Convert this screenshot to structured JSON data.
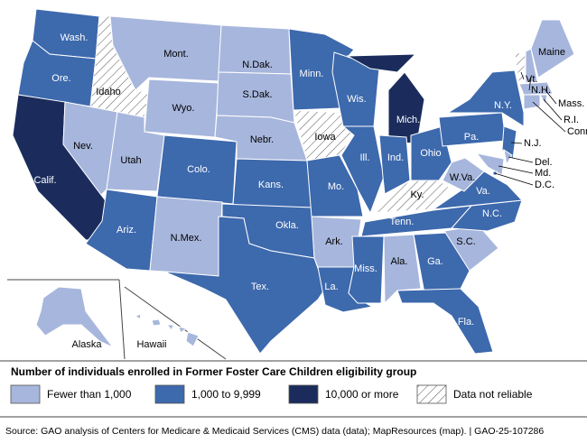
{
  "legend": {
    "title": "Number of individuals enrolled in Former Foster Care Children eligibility group",
    "items": [
      {
        "label": "Fewer than 1,000",
        "color": "#a7b6dc"
      },
      {
        "label": "1,000 to 9,999",
        "color": "#3d69ad"
      },
      {
        "label": "10,000 or more",
        "color": "#1b2c5c"
      },
      {
        "label": "Data not reliable",
        "color": "#ffffff",
        "hatched": true
      }
    ]
  },
  "states": [
    {
      "label": "Wash.",
      "category": "1,000 to 9,999"
    },
    {
      "label": "Ore.",
      "category": "1,000 to 9,999"
    },
    {
      "label": "Calif.",
      "category": "10,000 or more"
    },
    {
      "label": "Idaho",
      "category": "Data not reliable"
    },
    {
      "label": "Nev.",
      "category": "Fewer than 1,000"
    },
    {
      "label": "Mont.",
      "category": "Fewer than 1,000"
    },
    {
      "label": "Wyo.",
      "category": "Fewer than 1,000"
    },
    {
      "label": "Utah",
      "category": "Fewer than 1,000"
    },
    {
      "label": "Colo.",
      "category": "1,000 to 9,999"
    },
    {
      "label": "Ariz.",
      "category": "1,000 to 9,999"
    },
    {
      "label": "N.Mex.",
      "category": "Fewer than 1,000"
    },
    {
      "label": "N.Dak.",
      "category": "Fewer than 1,000"
    },
    {
      "label": "S.Dak.",
      "category": "Fewer than 1,000"
    },
    {
      "label": "Nebr.",
      "category": "Fewer than 1,000"
    },
    {
      "label": "Kans.",
      "category": "1,000 to 9,999"
    },
    {
      "label": "Okla.",
      "category": "1,000 to 9,999"
    },
    {
      "label": "Tex.",
      "category": "1,000 to 9,999"
    },
    {
      "label": "Minn.",
      "category": "1,000 to 9,999"
    },
    {
      "label": "Iowa",
      "category": "Data not reliable"
    },
    {
      "label": "Mo.",
      "category": "1,000 to 9,999"
    },
    {
      "label": "Ark.",
      "category": "Fewer than 1,000"
    },
    {
      "label": "La.",
      "category": "1,000 to 9,999"
    },
    {
      "label": "Wis.",
      "category": "1,000 to 9,999"
    },
    {
      "label": "Ill.",
      "category": "1,000 to 9,999"
    },
    {
      "label": "Mich.",
      "category": "10,000 or more"
    },
    {
      "label": "Ind.",
      "category": "1,000 to 9,999"
    },
    {
      "label": "Ohio",
      "category": "1,000 to 9,999"
    },
    {
      "label": "Ky.",
      "category": "Data not reliable"
    },
    {
      "label": "Tenn.",
      "category": "1,000 to 9,999"
    },
    {
      "label": "Miss.",
      "category": "1,000 to 9,999"
    },
    {
      "label": "Ala.",
      "category": "Fewer than 1,000"
    },
    {
      "label": "Ga.",
      "category": "1,000 to 9,999"
    },
    {
      "label": "Fla.",
      "category": "1,000 to 9,999"
    },
    {
      "label": "S.C.",
      "category": "Fewer than 1,000"
    },
    {
      "label": "N.C.",
      "category": "1,000 to 9,999"
    },
    {
      "label": "Va.",
      "category": "1,000 to 9,999"
    },
    {
      "label": "W.Va.",
      "category": "Fewer than 1,000"
    },
    {
      "label": "Pa.",
      "category": "1,000 to 9,999"
    },
    {
      "label": "N.Y.",
      "category": "1,000 to 9,999"
    },
    {
      "label": "N.J.",
      "category": "1,000 to 9,999"
    },
    {
      "label": "Del.",
      "category": "Fewer than 1,000"
    },
    {
      "label": "Md.",
      "category": "Fewer than 1,000"
    },
    {
      "label": "D.C.",
      "category": "1,000 to 9,999"
    },
    {
      "label": "Vt.",
      "category": "Data not reliable"
    },
    {
      "label": "N.H.",
      "category": "Fewer than 1,000"
    },
    {
      "label": "Maine",
      "category": "Fewer than 1,000"
    },
    {
      "label": "Mass.",
      "category": "Fewer than 1,000"
    },
    {
      "label": "R.I.",
      "category": "Fewer than 1,000"
    },
    {
      "label": "Conn.",
      "category": "Fewer than 1,000"
    },
    {
      "label": "Alaska",
      "category": "Fewer than 1,000"
    },
    {
      "label": "Hawaii",
      "category": "Fewer than 1,000"
    }
  ],
  "source": "Source: GAO analysis of Centers for Medicare & Medicaid Services (CMS) data (data); MapResources (map).  |  GAO-25-107286"
}
